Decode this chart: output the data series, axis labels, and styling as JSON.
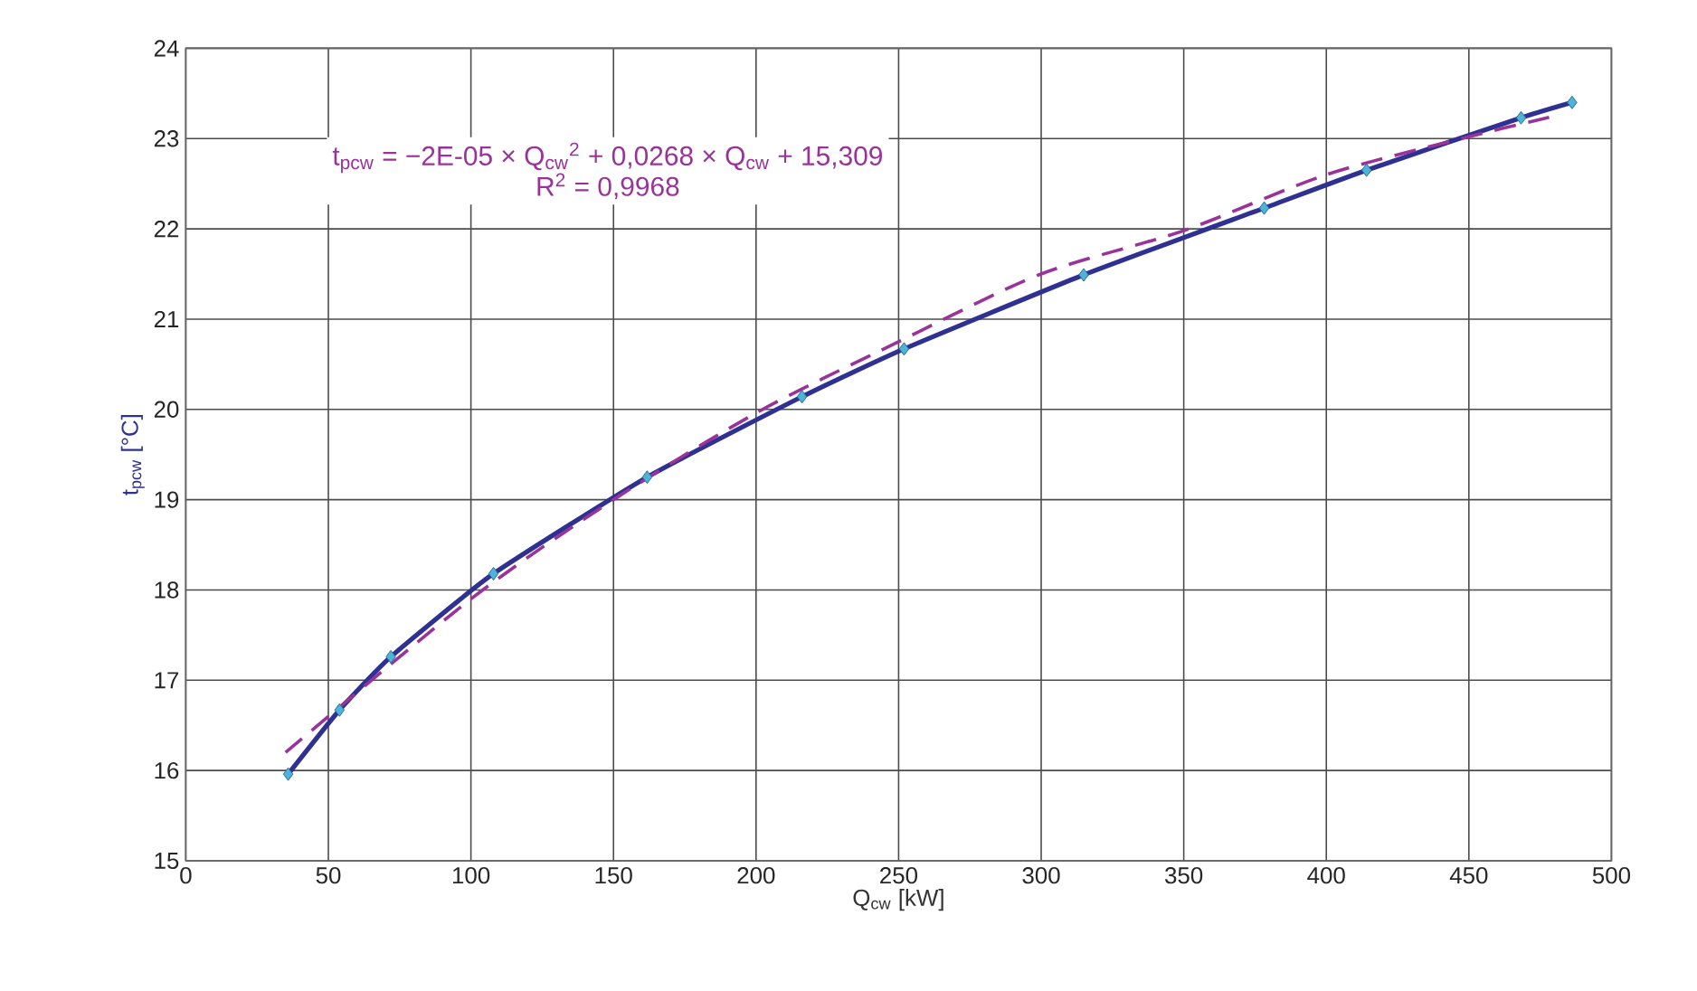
{
  "chart_data": {
    "type": "line",
    "xlabel": "Q$_{cw}$  [kW]",
    "ylabel": "t$_{pcw}$  [°C]",
    "annotations": [
      "t$_{pcw}$ = −2E-05 × Q$_{cw}$$^{2}$ + 0,0268 × Q$_{cw}$ + 15,309",
      "R$^{2}$ = 0,9968"
    ],
    "series": [
      {
        "color": "#2e3192",
        "marker": "diamond",
        "line_style": "solid",
        "x": [
          35.9,
          53.9,
          71.9,
          107.9,
          161.8,
          216.1,
          251.9,
          314.9,
          378.2,
          414.1,
          468.3,
          486.2
        ],
        "values": [
          15.96,
          16.67,
          17.26,
          18.18,
          19.25,
          20.14,
          20.67,
          21.49,
          22.23,
          22.65,
          23.23,
          23.4
        ]
      },
      {
        "color": "#993399",
        "marker": "none",
        "line_style": "dashed",
        "x": [
          35,
          100,
          150,
          200,
          250,
          300,
          350,
          400,
          450,
          480
        ],
        "values": [
          16.2,
          17.9,
          19.0,
          19.96,
          20.75,
          21.5,
          21.98,
          22.6,
          23.02,
          23.25
        ]
      }
    ],
    "xlim": [
      0,
      500
    ],
    "ylim": [
      15,
      24
    ],
    "xticks": [
      0,
      50,
      100,
      150,
      200,
      250,
      300,
      350,
      400,
      450,
      500
    ],
    "yticks": [
      15,
      16,
      17,
      18,
      19,
      20,
      21,
      22,
      23,
      24
    ],
    "grid": true
  }
}
